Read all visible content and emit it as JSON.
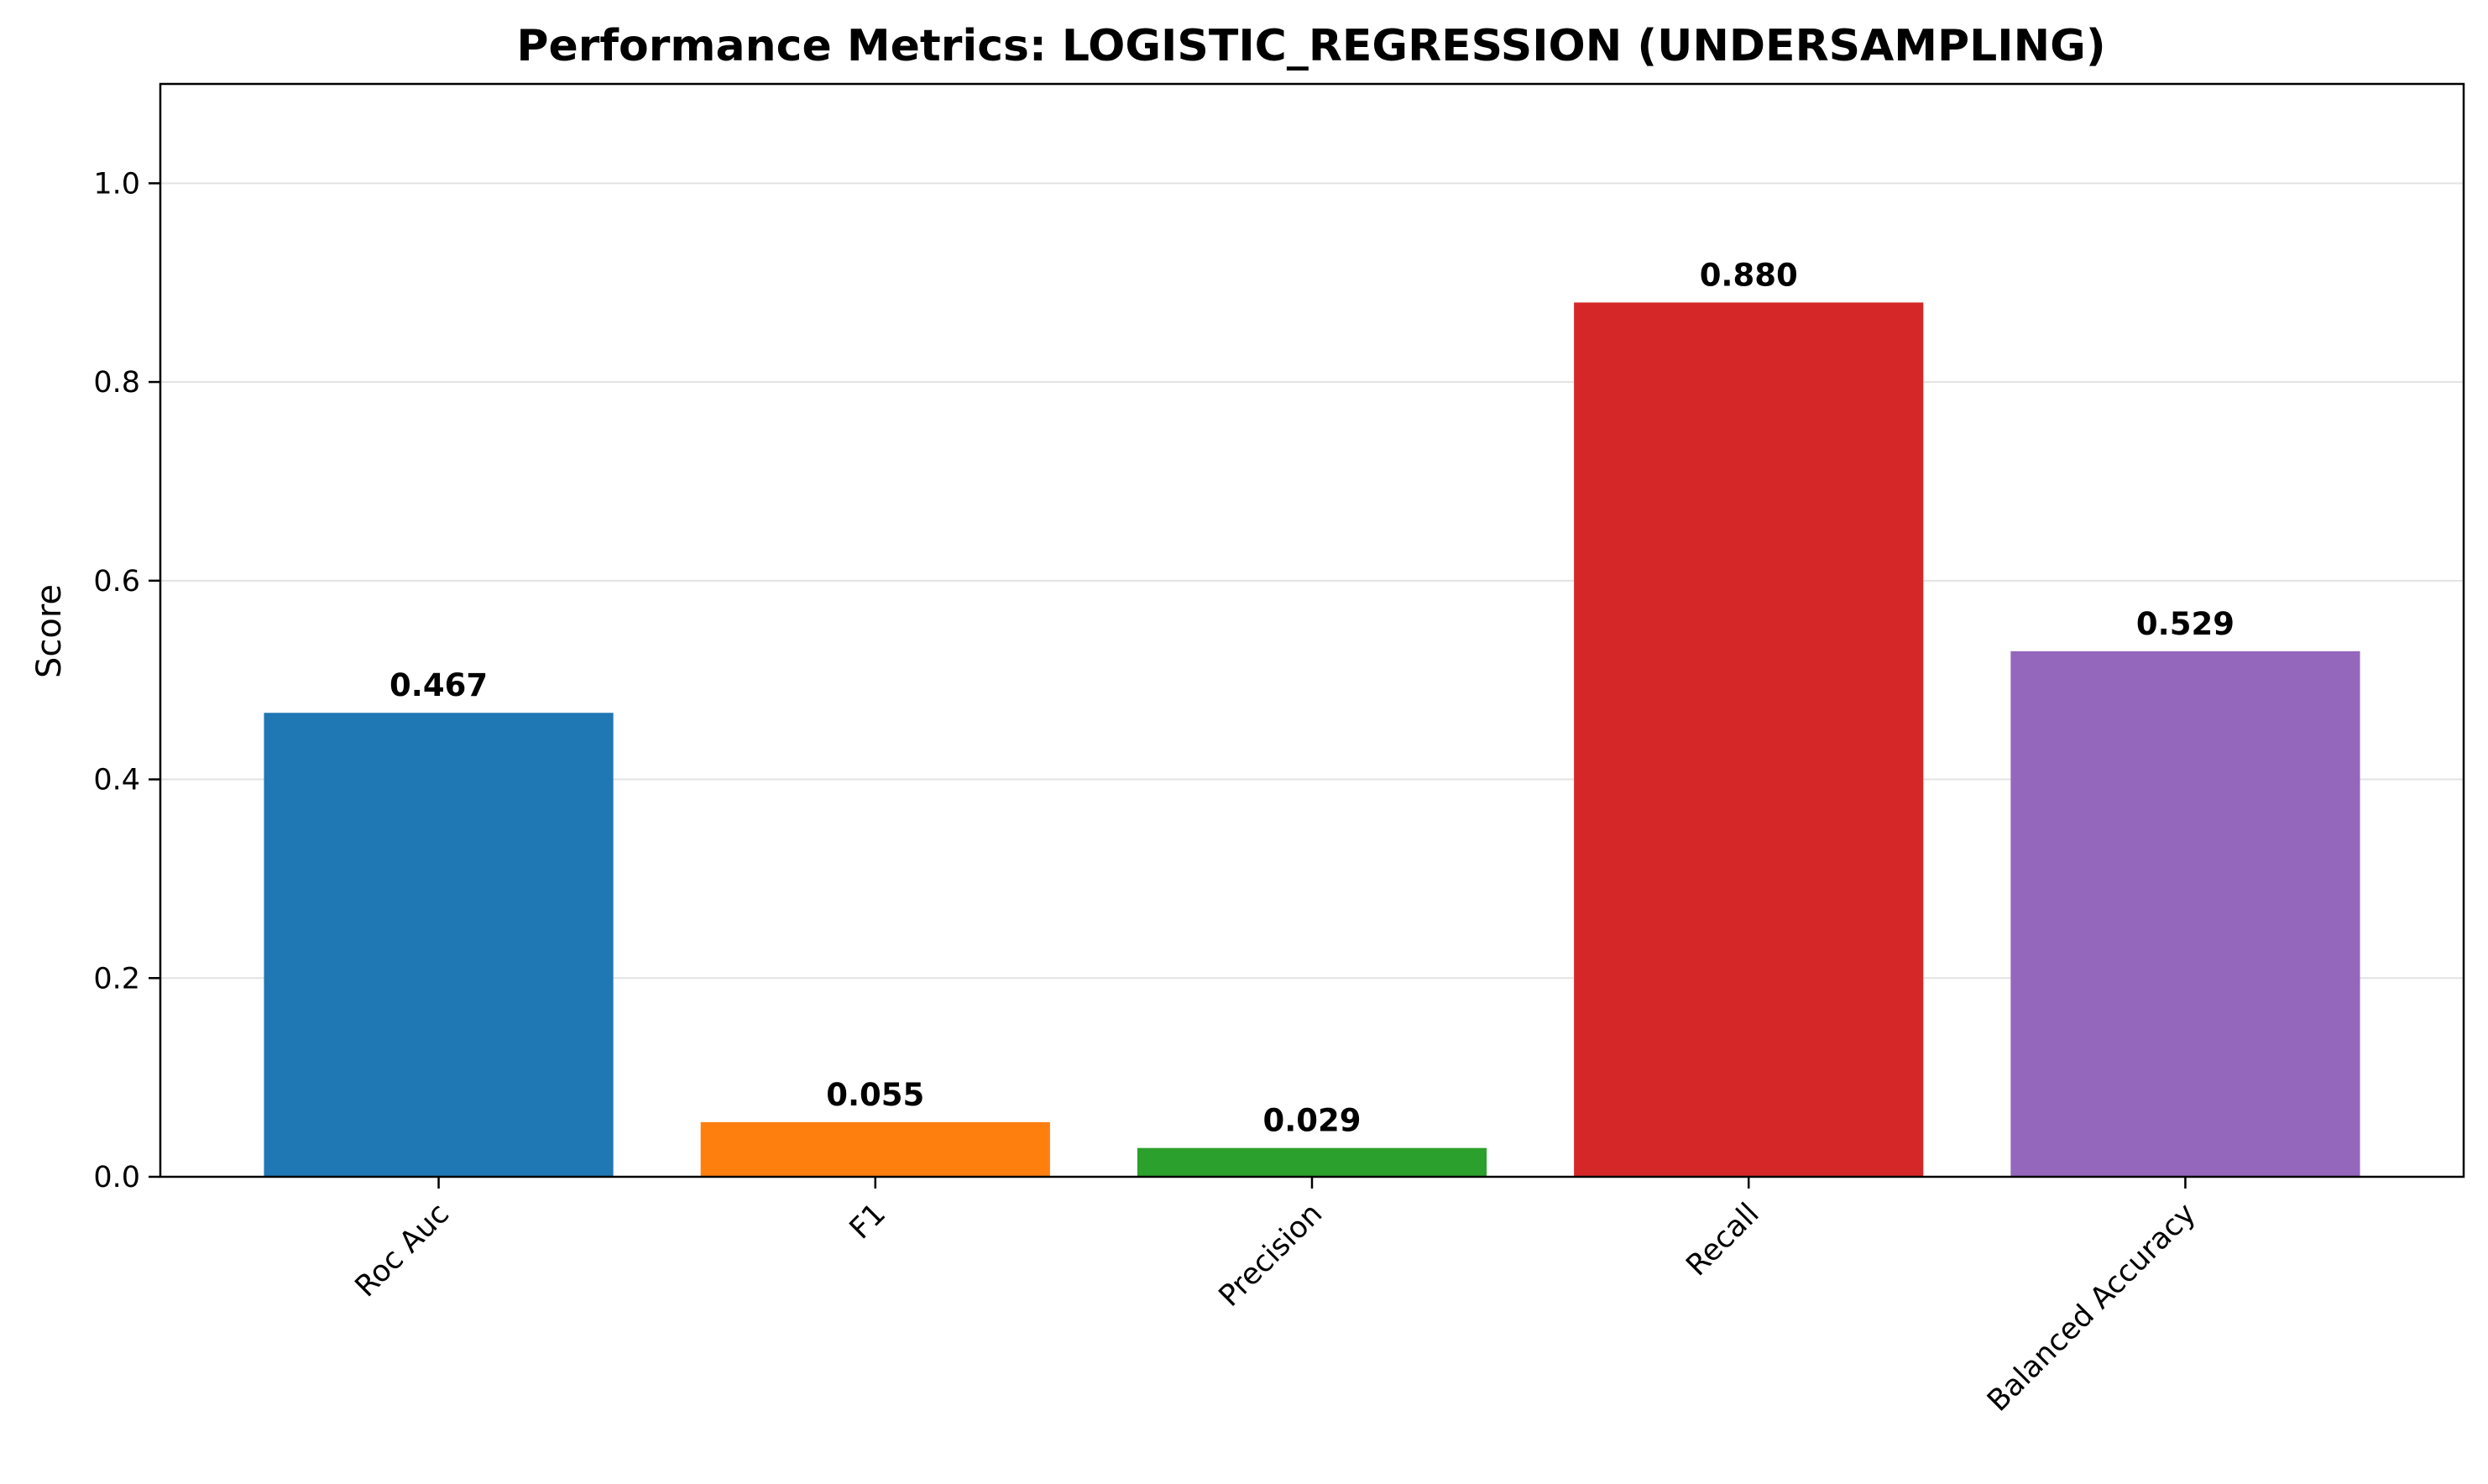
{
  "chart_data": {
    "type": "bar",
    "title": "Performance Metrics: LOGISTIC_REGRESSION (UNDERSAMPLING)",
    "xlabel": "",
    "ylabel": "Score",
    "ylim": [
      0,
      1.1
    ],
    "yticks": [
      0.0,
      0.2,
      0.4,
      0.6,
      0.8,
      1.0
    ],
    "ytick_labels": [
      "0.0",
      "0.2",
      "0.4",
      "0.6",
      "0.8",
      "1.0"
    ],
    "grid": "y",
    "legend": "none",
    "categories": [
      "Roc Auc",
      "F1",
      "Precision",
      "Recall",
      "Balanced Accuracy"
    ],
    "values": [
      0.467,
      0.055,
      0.029,
      0.88,
      0.529
    ],
    "value_labels": [
      "0.467",
      "0.055",
      "0.029",
      "0.880",
      "0.529"
    ],
    "colors": [
      "#1f77b4",
      "#ff7f0e",
      "#2ca02c",
      "#d62728",
      "#9467bd"
    ]
  }
}
